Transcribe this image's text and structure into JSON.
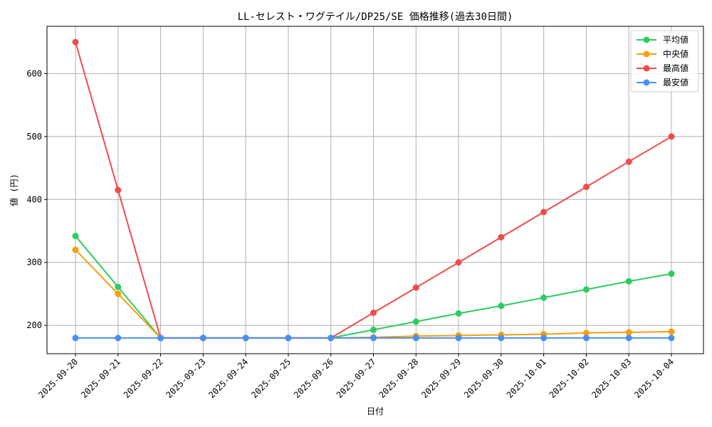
{
  "chart_data": {
    "type": "line",
    "title": "LL-セレスト・ワグテイル/DP25/SE 価格推移(過去30日間)",
    "xlabel": "日付",
    "ylabel": "値 (円)",
    "categories": [
      "2025-09-20",
      "2025-09-21",
      "2025-09-22",
      "2025-09-23",
      "2025-09-24",
      "2025-09-25",
      "2025-09-26",
      "2025-09-27",
      "2025-09-28",
      "2025-09-29",
      "2025-09-30",
      "2025-10-01",
      "2025-10-02",
      "2025-10-03",
      "2025-10-04"
    ],
    "ylim": [
      155,
      675
    ],
    "yticks": [
      200,
      300,
      400,
      500,
      600
    ],
    "grid": true,
    "legend_position": "top-right",
    "series": [
      {
        "name": "平均値",
        "color": "#2ecc5f",
        "values": [
          342,
          261,
          180,
          180,
          180,
          180,
          180,
          193,
          206,
          219,
          231,
          244,
          257,
          270,
          282
        ]
      },
      {
        "name": "中央値",
        "color": "#f5a00f",
        "values": [
          320,
          250,
          180,
          180,
          180,
          180,
          180,
          181,
          183,
          184,
          185,
          186,
          188,
          189,
          190
        ]
      },
      {
        "name": "最高値",
        "color": "#f24b4b",
        "values": [
          650,
          415,
          180,
          180,
          180,
          180,
          180,
          220,
          260,
          300,
          340,
          380,
          420,
          460,
          500
        ]
      },
      {
        "name": "最安値",
        "color": "#4a90f0",
        "values": [
          180,
          180,
          180,
          180,
          180,
          180,
          180,
          180,
          180,
          180,
          180,
          180,
          180,
          180,
          180
        ]
      }
    ]
  }
}
